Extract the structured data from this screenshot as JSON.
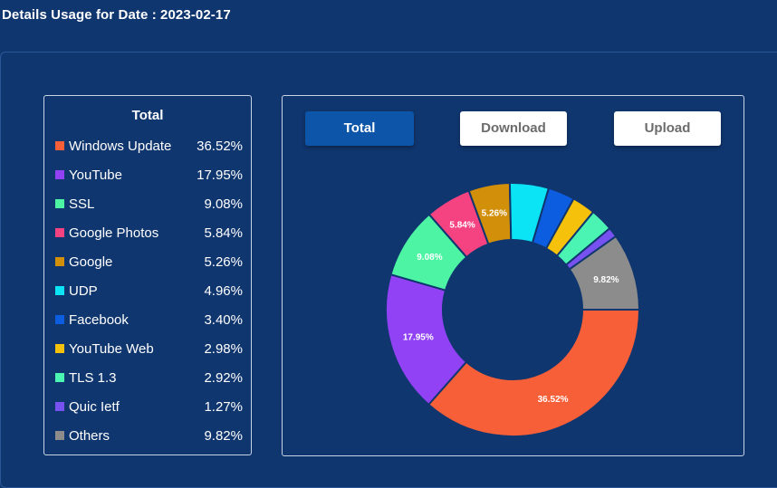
{
  "header": {
    "title": "Details Usage for Date : 2023-02-17"
  },
  "legend": {
    "title": "Total"
  },
  "buttons": {
    "total": "Total",
    "download": "Download",
    "upload": "Upload"
  },
  "chart_data": {
    "type": "pie",
    "title": "",
    "slices": [
      {
        "name": "Windows Update",
        "value": 36.52,
        "display": "36.52%",
        "color": "#f65f38"
      },
      {
        "name": "YouTube",
        "value": 17.95,
        "display": "17.95%",
        "color": "#9142f4"
      },
      {
        "name": "SSL",
        "value": 9.08,
        "display": "9.08%",
        "color": "#4cf4a4"
      },
      {
        "name": "Google Photos",
        "value": 5.84,
        "display": "5.84%",
        "color": "#f54281"
      },
      {
        "name": "Google",
        "value": 5.26,
        "display": "5.26%",
        "color": "#d18f0a"
      },
      {
        "name": "UDP",
        "value": 4.96,
        "display": "4.96%",
        "color": "#0ae4f4"
      },
      {
        "name": "Facebook",
        "value": 3.4,
        "display": "3.40%",
        "color": "#0c5de0"
      },
      {
        "name": "YouTube Web",
        "value": 2.98,
        "display": "2.98%",
        "color": "#f6c10a"
      },
      {
        "name": "TLS 1.3",
        "value": 2.92,
        "display": "2.92%",
        "color": "#4cf4b4"
      },
      {
        "name": "Quic Ietf",
        "value": 1.27,
        "display": "1.27%",
        "color": "#7752f0"
      },
      {
        "name": "Others",
        "value": 9.82,
        "display": "9.82%",
        "color": "#8c8c8c"
      }
    ],
    "labeled_slices": [
      "Windows Update",
      "YouTube",
      "SSL",
      "Google Photos",
      "Google",
      "Others"
    ]
  }
}
